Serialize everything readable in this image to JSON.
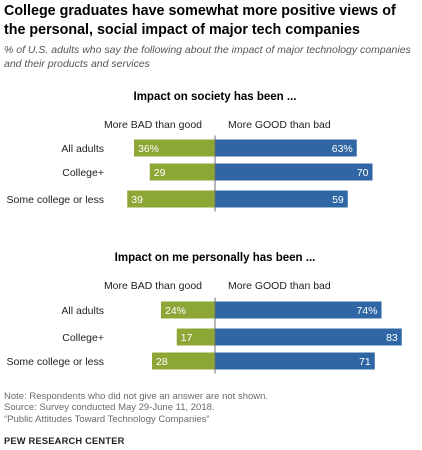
{
  "title": "College graduates have somewhat more positive views of the personal, social impact of major tech companies",
  "subtitle": "% of U.S. adults who say the following about the impact of major technology companies and their products and services",
  "colors": {
    "bad": "#8da737",
    "good": "#2f67a5",
    "divider": "#6e6e6e"
  },
  "chart_data": [
    {
      "type": "bar",
      "title": "Impact on society has been ...",
      "categories": [
        "All adults",
        "College+",
        "Some college or less"
      ],
      "series": [
        {
          "name": "More BAD than good",
          "values": [
            36,
            29,
            39
          ],
          "labels": [
            "36%",
            "29",
            "39"
          ]
        },
        {
          "name": "More GOOD than bad",
          "values": [
            63,
            70,
            59
          ],
          "labels": [
            "63%",
            "70",
            "59"
          ]
        }
      ]
    },
    {
      "type": "bar",
      "title": "Impact on me personally has been ...",
      "categories": [
        "All adults",
        "College+",
        "Some college or less"
      ],
      "series": [
        {
          "name": "More BAD than good",
          "values": [
            24,
            17,
            28
          ],
          "labels": [
            "24%",
            "17",
            "28"
          ]
        },
        {
          "name": "More GOOD than bad",
          "values": [
            74,
            83,
            71
          ],
          "labels": [
            "74%",
            "83",
            "71"
          ]
        }
      ]
    }
  ],
  "notes": [
    "Note: Respondents who did not give an answer are not shown.",
    "Source: Survey conducted May 29-June 11, 2018.",
    "“Public Attitudes Toward Technology Companies”"
  ],
  "credit": "PEW RESEARCH CENTER"
}
